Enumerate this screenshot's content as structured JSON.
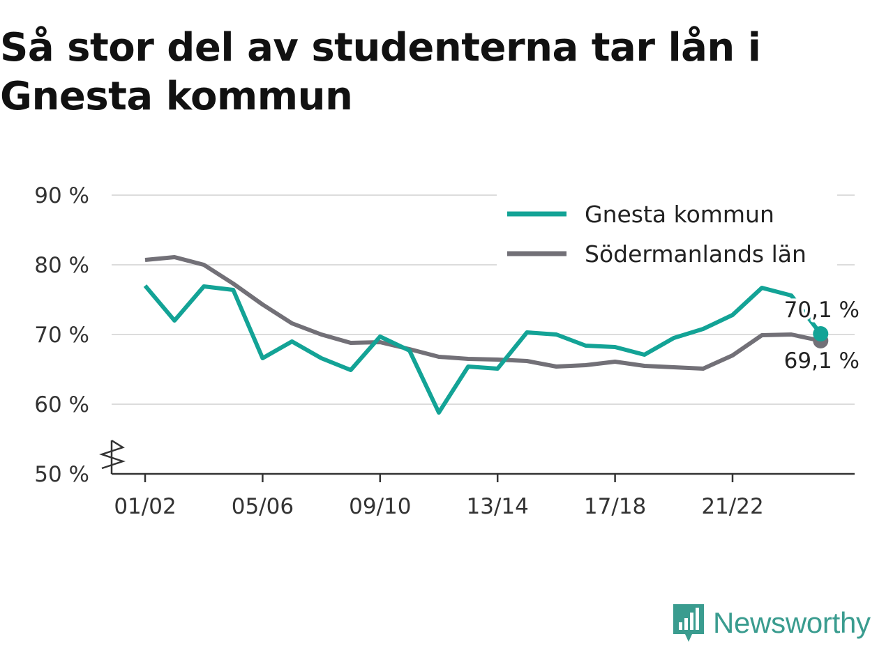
{
  "title": "Så stor del av studenterna tar lån i Gnesta kommun",
  "brand": {
    "name": "Newsworthy",
    "icon": "newsworthy-logo-icon",
    "color": "#3a9c8f"
  },
  "colors": {
    "gnesta": "#13a396",
    "sodermanland": "#727077",
    "grid": "#dcdcdc",
    "axis": "#333333"
  },
  "chart_data": {
    "type": "line",
    "title": "Så stor del av studenterna tar lån i Gnesta kommun",
    "xlabel": "",
    "ylabel": "",
    "ylim": [
      50,
      90
    ],
    "yticks": [
      90,
      80,
      70,
      60,
      50
    ],
    "ytick_labels": [
      "90 %",
      "80 %",
      "70 %",
      "60 %",
      "50 %"
    ],
    "axis_break": true,
    "xtick_labels": [
      "01/02",
      "05/06",
      "09/10",
      "13/14",
      "17/18",
      "21/22"
    ],
    "xtick_indices": [
      0,
      4,
      8,
      12,
      16,
      20
    ],
    "grid": "horizontal",
    "legend_position": "top-right",
    "x": [
      "01/02",
      "02/03",
      "03/04",
      "04/05",
      "05/06",
      "06/07",
      "07/08",
      "08/09",
      "09/10",
      "10/11",
      "11/12",
      "12/13",
      "13/14",
      "14/15",
      "15/16",
      "16/17",
      "17/18",
      "18/19",
      "19/20",
      "20/21",
      "21/22",
      "22/23",
      "23/24",
      "24/25"
    ],
    "series": [
      {
        "name": "Gnesta kommun",
        "color": "#13a396",
        "values": [
          77.0,
          72.0,
          76.9,
          76.4,
          66.6,
          69.0,
          66.6,
          64.9,
          69.7,
          67.7,
          58.8,
          65.4,
          65.1,
          70.3,
          70.0,
          68.4,
          68.2,
          67.1,
          69.5,
          70.8,
          72.8,
          76.7,
          75.6,
          70.1
        ],
        "end_label": "70,1 %"
      },
      {
        "name": "Södermanlands län",
        "color": "#727077",
        "values": [
          80.7,
          81.1,
          80.0,
          77.3,
          74.3,
          71.6,
          70.0,
          68.8,
          68.9,
          67.9,
          66.8,
          66.5,
          66.4,
          66.2,
          65.4,
          65.6,
          66.1,
          65.5,
          65.3,
          65.1,
          67.0,
          69.9,
          70.0,
          69.1
        ],
        "end_label": "69,1 %"
      }
    ]
  }
}
